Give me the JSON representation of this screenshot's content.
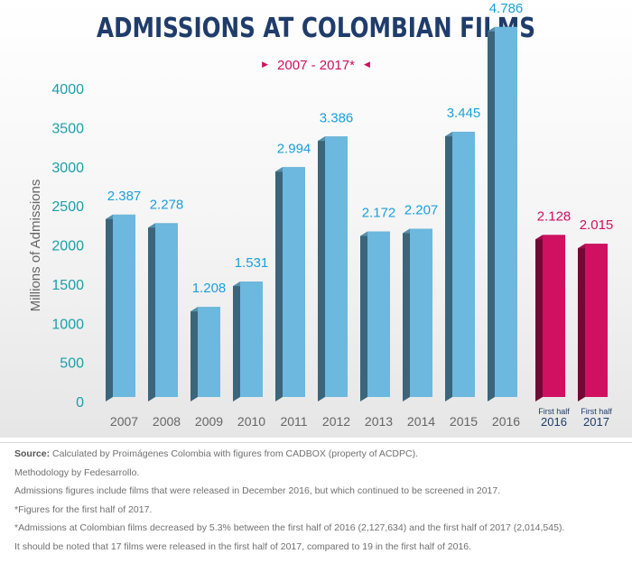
{
  "chart_data": {
    "type": "bar",
    "title": "ADMISSIONS AT COLOMBIAN FILMS",
    "subtitle": "2007 - 2017*",
    "ylabel": "Millions of Admissions",
    "ylim": [
      0,
      4000
    ],
    "yticks": [
      0,
      500,
      1000,
      1500,
      2000,
      2500,
      3000,
      3500,
      4000
    ],
    "categories": [
      "2007",
      "2008",
      "2009",
      "2010",
      "2011",
      "2012",
      "2013",
      "2014",
      "2015",
      "2016",
      "2016",
      "2017"
    ],
    "category_notes": [
      "",
      "",
      "",
      "",
      "",
      "",
      "",
      "",
      "",
      "",
      "First half",
      "First half"
    ],
    "values": [
      2387,
      2278,
      1208,
      1531,
      2994,
      3386,
      2172,
      2207,
      3445,
      4786,
      2128,
      2015
    ],
    "value_labels": [
      "2.387",
      "2.278",
      "1.208",
      "1.531",
      "2.994",
      "3.386",
      "2.172",
      "2.207",
      "3.445",
      "4.786",
      "2.128",
      "2.015"
    ],
    "colors": {
      "full_year": "#6cb8de",
      "first_half": "#d01060",
      "full_year_label": "#1aa0dd",
      "first_half_label": "#d01060"
    }
  },
  "footer": {
    "source_label": "Source:",
    "source_text": "Calculated by Proimágenes Colombia with figures from CADBOX (property of ACDPC).",
    "methodology": "Methodology by Fedesarrollo.",
    "note1": "Admissions figures include films that were released in December 2016, but which continued to be screened in 2017.",
    "note2": "*Figures for the first half of 2017.",
    "note3": "*Admissions at Colombian films decreased by 5.3% between the first half of 2016 (2,127,634) and the first half of 2017 (2,014,545).",
    "note4": "It should be noted that 17 films were released in the first half of 2017, compared to 19 in the first half of 2016."
  }
}
